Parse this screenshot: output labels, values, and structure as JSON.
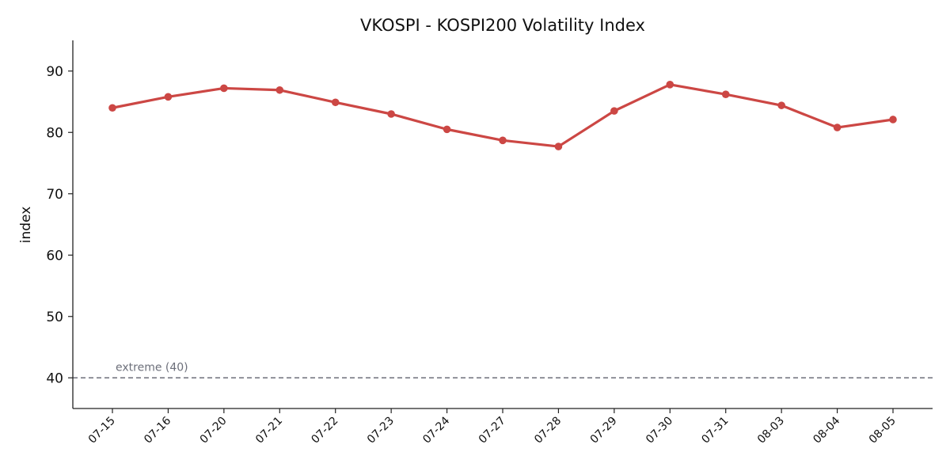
{
  "chart_data": {
    "type": "line",
    "title": "VKOSPI - KOSPI200 Volatility Index",
    "xlabel": "",
    "ylabel": "index",
    "categories": [
      "07-15",
      "07-16",
      "07-20",
      "07-21",
      "07-22",
      "07-23",
      "07-24",
      "07-27",
      "07-28",
      "07-29",
      "07-30",
      "07-31",
      "08-03",
      "08-04",
      "08-05"
    ],
    "series": [
      {
        "values": [
          84.0,
          85.8,
          87.2,
          86.9,
          84.9,
          83.0,
          80.5,
          78.7,
          77.7,
          83.5,
          87.8,
          86.2,
          84.4,
          80.8,
          82.1
        ],
        "color": "#cc4744"
      }
    ],
    "ylim": [
      35,
      95
    ],
    "yticks": [
      40,
      50,
      60,
      70,
      80,
      90
    ],
    "reference_line": {
      "value": 40,
      "label": "extreme (40)",
      "color": "#6c6f7a",
      "style": "dashed"
    },
    "grid": false,
    "legend": "none"
  }
}
